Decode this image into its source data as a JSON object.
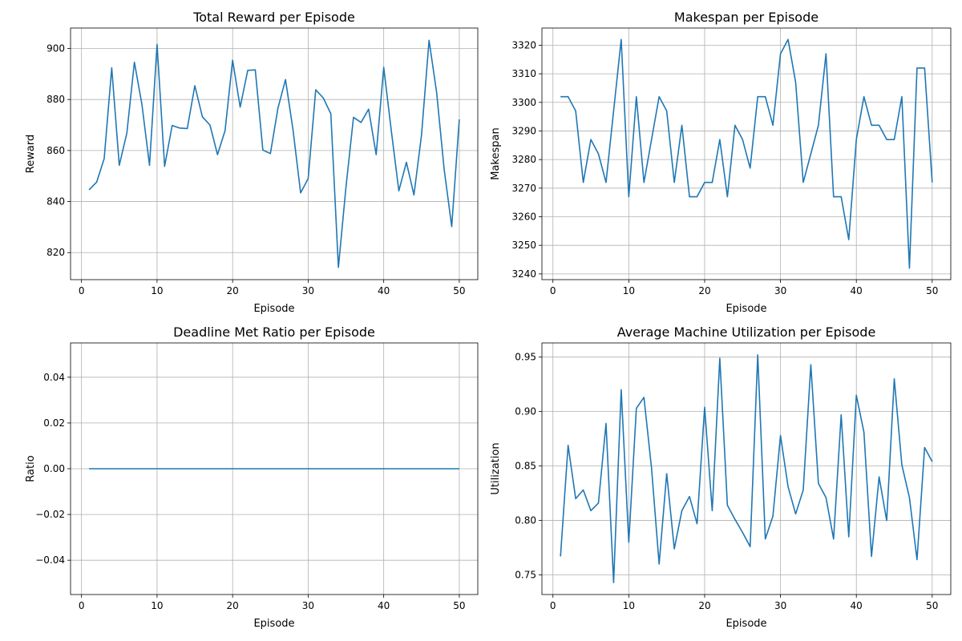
{
  "figure": {
    "background": "#ffffff",
    "line_color": "#1f77b4"
  },
  "chart_data": [
    {
      "type": "line",
      "title": "Total Reward per Episode",
      "xlabel": "Episode",
      "ylabel": "Reward",
      "xlim": [
        -1.45,
        52.45
      ],
      "ylim": [
        809.4,
        908.0
      ],
      "xticks": [
        0,
        10,
        20,
        30,
        40,
        50
      ],
      "yticks": [
        820,
        840,
        860,
        880,
        900
      ],
      "grid": true,
      "series": [
        {
          "x": [
            1,
            2,
            3,
            4,
            5,
            6,
            7,
            8,
            9,
            10,
            11,
            12,
            13,
            14,
            15,
            16,
            17,
            18,
            19,
            20,
            21,
            22,
            23,
            24,
            25,
            26,
            27,
            28,
            29,
            30,
            31,
            32,
            33,
            34,
            35,
            36,
            37,
            38,
            39,
            40,
            41,
            42,
            43,
            44,
            45,
            46,
            47,
            48,
            49,
            50
          ],
          "values": [
            844.6,
            847.6,
            856.8,
            892.4,
            854.2,
            866.8,
            894.6,
            878.0,
            854.2,
            901.6,
            853.8,
            869.8,
            868.8,
            868.6,
            885.4,
            873.2,
            870.0,
            858.4,
            867.8,
            895.4,
            877.0,
            891.4,
            891.6,
            860.2,
            858.8,
            876.6,
            887.8,
            868.0,
            843.4,
            849.0,
            883.8,
            880.6,
            874.4,
            814.2,
            845.6,
            873.0,
            871.0,
            876.2,
            858.4,
            892.6,
            867.8,
            844.2,
            855.4,
            842.6,
            866.0,
            903.2,
            882.8,
            852.6,
            830.2,
            872.2
          ]
        }
      ]
    },
    {
      "type": "line",
      "title": "Makespan per Episode",
      "xlabel": "Episode",
      "ylabel": "Makespan",
      "xlim": [
        -1.45,
        52.45
      ],
      "ylim": [
        3238.0,
        3326.0
      ],
      "xticks": [
        0,
        10,
        20,
        30,
        40,
        50
      ],
      "yticks": [
        3240,
        3250,
        3260,
        3270,
        3280,
        3290,
        3300,
        3310,
        3320
      ],
      "grid": true,
      "series": [
        {
          "x": [
            1,
            2,
            3,
            4,
            5,
            6,
            7,
            8,
            9,
            10,
            11,
            12,
            13,
            14,
            15,
            16,
            17,
            18,
            19,
            20,
            21,
            22,
            23,
            24,
            25,
            26,
            27,
            28,
            29,
            30,
            31,
            32,
            33,
            34,
            35,
            36,
            37,
            38,
            39,
            40,
            41,
            42,
            43,
            44,
            45,
            46,
            47,
            48,
            49,
            50
          ],
          "values": [
            3302,
            3302,
            3297,
            3272,
            3287,
            3282,
            3272,
            3297,
            3322,
            3267,
            3302,
            3272,
            3287,
            3302,
            3297,
            3272,
            3292,
            3267,
            3267,
            3272,
            3272,
            3287,
            3267,
            3292,
            3287,
            3277,
            3302,
            3302,
            3292,
            3317,
            3322,
            3307,
            3272,
            3282,
            3292,
            3317,
            3267,
            3267,
            3252,
            3287,
            3302,
            3292,
            3292,
            3287,
            3287,
            3302,
            3242,
            3312,
            3312,
            3272
          ]
        }
      ]
    },
    {
      "type": "line",
      "title": "Deadline Met Ratio per Episode",
      "xlabel": "Episode",
      "ylabel": "Ratio",
      "xlim": [
        -1.45,
        52.45
      ],
      "ylim": [
        -0.055,
        0.055
      ],
      "xticks": [
        0,
        10,
        20,
        30,
        40,
        50
      ],
      "yticks": [
        -0.04,
        -0.02,
        0.0,
        0.02,
        0.04
      ],
      "ytick_labels": [
        "−0.04",
        "−0.02",
        "0.00",
        "0.02",
        "0.04"
      ],
      "grid": true,
      "series": [
        {
          "x": [
            1,
            2,
            3,
            4,
            5,
            6,
            7,
            8,
            9,
            10,
            11,
            12,
            13,
            14,
            15,
            16,
            17,
            18,
            19,
            20,
            21,
            22,
            23,
            24,
            25,
            26,
            27,
            28,
            29,
            30,
            31,
            32,
            33,
            34,
            35,
            36,
            37,
            38,
            39,
            40,
            41,
            42,
            43,
            44,
            45,
            46,
            47,
            48,
            49,
            50
          ],
          "values": [
            0,
            0,
            0,
            0,
            0,
            0,
            0,
            0,
            0,
            0,
            0,
            0,
            0,
            0,
            0,
            0,
            0,
            0,
            0,
            0,
            0,
            0,
            0,
            0,
            0,
            0,
            0,
            0,
            0,
            0,
            0,
            0,
            0,
            0,
            0,
            0,
            0,
            0,
            0,
            0,
            0,
            0,
            0,
            0,
            0,
            0,
            0,
            0,
            0,
            0
          ]
        }
      ]
    },
    {
      "type": "line",
      "title": "Average Machine Utilization per Episode",
      "xlabel": "Episode",
      "ylabel": "Utilization",
      "xlim": [
        -1.45,
        52.45
      ],
      "ylim": [
        0.732,
        0.963
      ],
      "xticks": [
        0,
        10,
        20,
        30,
        40,
        50
      ],
      "yticks": [
        0.75,
        0.8,
        0.85,
        0.9,
        0.95
      ],
      "grid": true,
      "series": [
        {
          "x": [
            1,
            2,
            3,
            4,
            5,
            6,
            7,
            8,
            9,
            10,
            11,
            12,
            13,
            14,
            15,
            16,
            17,
            18,
            19,
            20,
            21,
            22,
            23,
            24,
            25,
            26,
            27,
            28,
            29,
            30,
            31,
            32,
            33,
            34,
            35,
            36,
            37,
            38,
            39,
            40,
            41,
            42,
            43,
            44,
            45,
            46,
            47,
            48,
            49,
            50
          ],
          "values": [
            0.767,
            0.869,
            0.82,
            0.828,
            0.809,
            0.816,
            0.889,
            0.743,
            0.92,
            0.78,
            0.903,
            0.913,
            0.848,
            0.76,
            0.843,
            0.774,
            0.809,
            0.822,
            0.797,
            0.904,
            0.809,
            0.949,
            0.814,
            0.801,
            0.789,
            0.776,
            0.952,
            0.783,
            0.804,
            0.878,
            0.831,
            0.806,
            0.828,
            0.943,
            0.834,
            0.821,
            0.783,
            0.897,
            0.785,
            0.915,
            0.881,
            0.767,
            0.84,
            0.8,
            0.93,
            0.851,
            0.821,
            0.764,
            0.867,
            0.854
          ]
        }
      ]
    }
  ]
}
